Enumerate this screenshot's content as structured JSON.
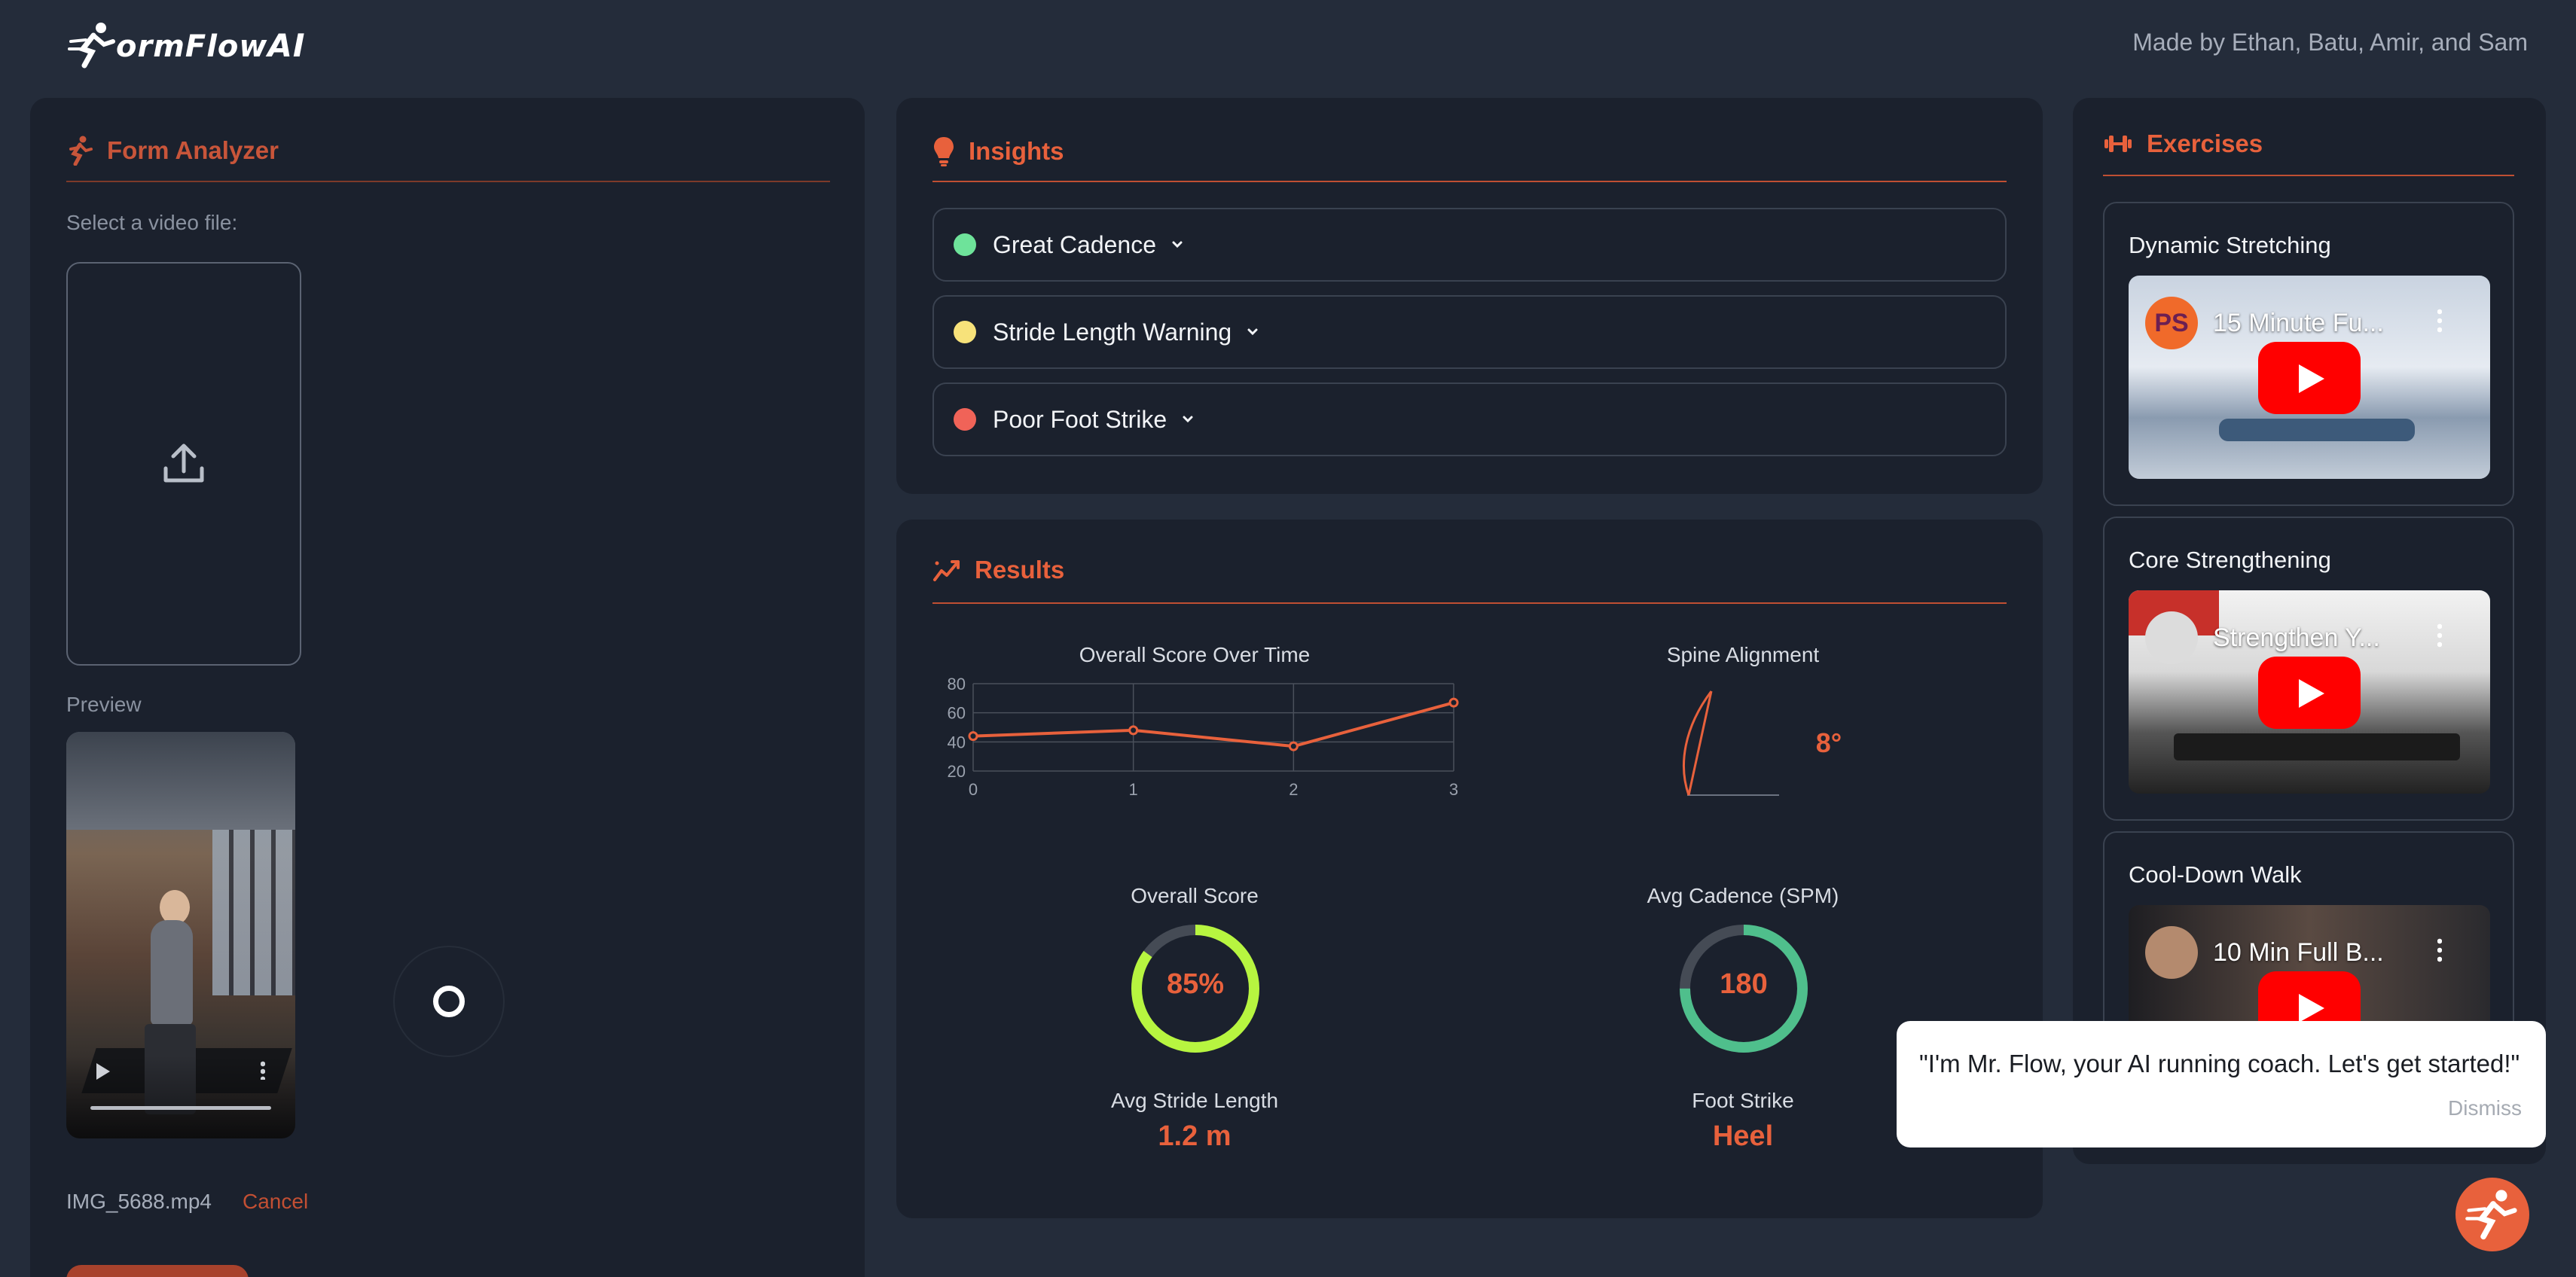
{
  "header": {
    "logo_text": "ormFlow",
    "logo_ai": "AI",
    "credits": "Made by Ethan, Batu, Amir, and Sam"
  },
  "form_analyzer": {
    "title": "Form Analyzer",
    "select_label": "Select a video file:",
    "preview_label": "Preview",
    "filename": "IMG_5688.mp4",
    "cancel_label": "Cancel",
    "icons": [
      "runner-icon",
      "upload-icon",
      "play-icon",
      "more-options-icon",
      "loading-spinner-icon"
    ]
  },
  "insights": {
    "title": "Insights",
    "items": [
      {
        "label": "Great Cadence",
        "color": "#6ee39a"
      },
      {
        "label": "Stride Length Warning",
        "color": "#f7e27a"
      },
      {
        "label": "Poor Foot Strike",
        "color": "#f06358"
      }
    ]
  },
  "results": {
    "title": "Results",
    "chart_data": {
      "type": "line",
      "title": "Overall Score Over Time",
      "x": [
        0,
        1,
        2,
        3
      ],
      "series": [
        {
          "values": [
            44,
            48,
            37,
            67
          ]
        }
      ],
      "xlabel": "",
      "ylabel": "",
      "xticks": [
        "0",
        "1",
        "2",
        "3"
      ],
      "yticks": [
        "20",
        "40",
        "60",
        "80"
      ],
      "ylim": [
        20,
        80
      ],
      "grid": true,
      "color": "#e8613c"
    },
    "spine": {
      "label": "Spine Alignment",
      "value": "8°",
      "degrees": 8
    },
    "overall_score": {
      "label": "Overall Score",
      "value": "85%",
      "fraction": 0.85,
      "color": "#b7f540"
    },
    "avg_cadence": {
      "label": "Avg Cadence (SPM)",
      "value": "180",
      "fraction": 0.75,
      "color": "#4fbf8c"
    },
    "avg_stride": {
      "label": "Avg Stride Length",
      "value": "1.2 m"
    },
    "foot_strike": {
      "label": "Foot Strike",
      "value": "Heel"
    }
  },
  "exercises": {
    "title": "Exercises",
    "items": [
      {
        "title": "Dynamic Stretching",
        "video_title": "15 Minute Fu...",
        "channel_badge": "PS"
      },
      {
        "title": "Core Strengthening",
        "video_title": "Strengthen Y..."
      },
      {
        "title": "Cool-Down Walk",
        "video_title": "10 Min Full B..."
      }
    ]
  },
  "toast": {
    "message": "\"I'm Mr. Flow, your AI running coach. Let's get started!\"",
    "dismiss_label": "Dismiss"
  }
}
